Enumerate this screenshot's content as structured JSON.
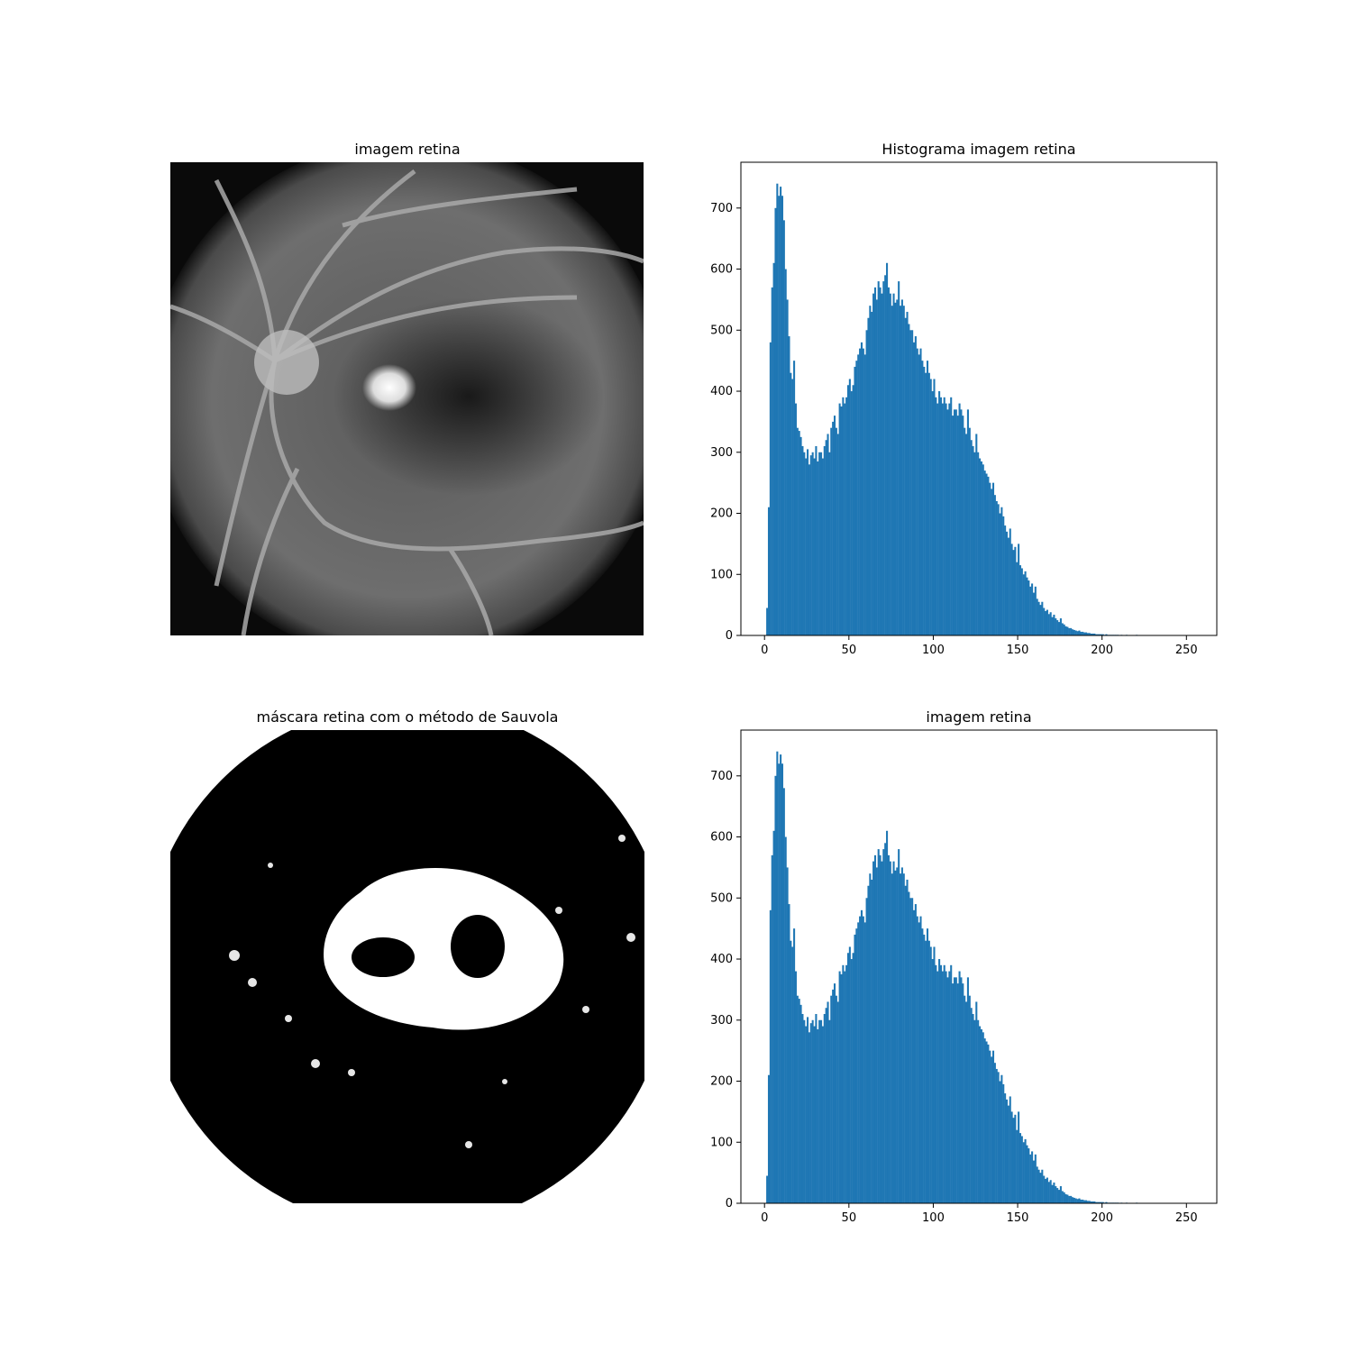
{
  "panels": {
    "top_left_title": "imagem retina",
    "top_right_title": "Histograma imagem retina",
    "bottom_left_title": "máscara retina com o método de Sauvola",
    "bottom_right_title": "imagem retina"
  },
  "chart_data": [
    {
      "type": "bar",
      "title": "Histograma imagem retina",
      "xlabel": "",
      "ylabel": "",
      "xlim": [
        -14,
        268
      ],
      "ylim": [
        0,
        775
      ],
      "xticks": [
        0,
        50,
        100,
        150,
        200,
        250
      ],
      "yticks": [
        0,
        100,
        200,
        300,
        400,
        500,
        600,
        700
      ],
      "grid": false,
      "bar_color": "#1f77b4",
      "bins_start": 0,
      "bins_width": 1,
      "values": [
        0,
        45,
        210,
        480,
        570,
        610,
        700,
        740,
        720,
        735,
        720,
        680,
        600,
        550,
        490,
        430,
        420,
        450,
        380,
        340,
        335,
        325,
        310,
        300,
        290,
        305,
        280,
        295,
        300,
        290,
        310,
        285,
        300,
        300,
        290,
        310,
        320,
        330,
        300,
        340,
        350,
        360,
        340,
        330,
        380,
        375,
        390,
        380,
        390,
        410,
        420,
        400,
        410,
        440,
        450,
        460,
        470,
        480,
        470,
        460,
        500,
        520,
        540,
        530,
        560,
        570,
        550,
        580,
        570,
        560,
        580,
        590,
        610,
        570,
        560,
        540,
        560,
        545,
        550,
        580,
        540,
        550,
        540,
        520,
        530,
        510,
        500,
        500,
        480,
        490,
        470,
        460,
        470,
        450,
        440,
        430,
        450,
        430,
        420,
        400,
        420,
        390,
        380,
        400,
        390,
        380,
        390,
        380,
        370,
        380,
        390,
        360,
        370,
        370,
        360,
        380,
        370,
        360,
        340,
        330,
        370,
        340,
        320,
        310,
        300,
        330,
        300,
        290,
        285,
        280,
        270,
        265,
        260,
        250,
        240,
        250,
        230,
        220,
        215,
        200,
        210,
        195,
        180,
        170,
        160,
        175,
        150,
        140,
        145,
        120,
        150,
        115,
        110,
        100,
        105,
        95,
        90,
        80,
        85,
        70,
        80,
        60,
        55,
        50,
        55,
        45,
        40,
        42,
        35,
        38,
        30,
        34,
        28,
        25,
        22,
        28,
        20,
        18,
        15,
        14,
        12,
        12,
        10,
        9,
        8,
        7,
        8,
        6,
        6,
        5,
        5,
        4,
        4,
        3,
        3,
        3,
        2,
        2,
        2,
        2,
        2,
        1,
        2,
        1,
        1,
        1,
        1,
        1,
        1,
        1,
        0,
        1,
        0,
        0,
        1,
        0,
        0,
        0,
        0,
        0,
        1,
        0,
        0,
        0,
        0,
        0,
        0,
        0,
        0,
        0,
        0,
        0
      ]
    },
    {
      "type": "bar",
      "title": "imagem retina",
      "xlabel": "",
      "ylabel": "",
      "xlim": [
        -14,
        268
      ],
      "ylim": [
        0,
        775
      ],
      "xticks": [
        0,
        50,
        100,
        150,
        200,
        250
      ],
      "yticks": [
        0,
        100,
        200,
        300,
        400,
        500,
        600,
        700
      ],
      "grid": false,
      "bar_color": "#1f77b4",
      "bins_start": 0,
      "bins_width": 1,
      "values": "same as chart 0"
    }
  ]
}
